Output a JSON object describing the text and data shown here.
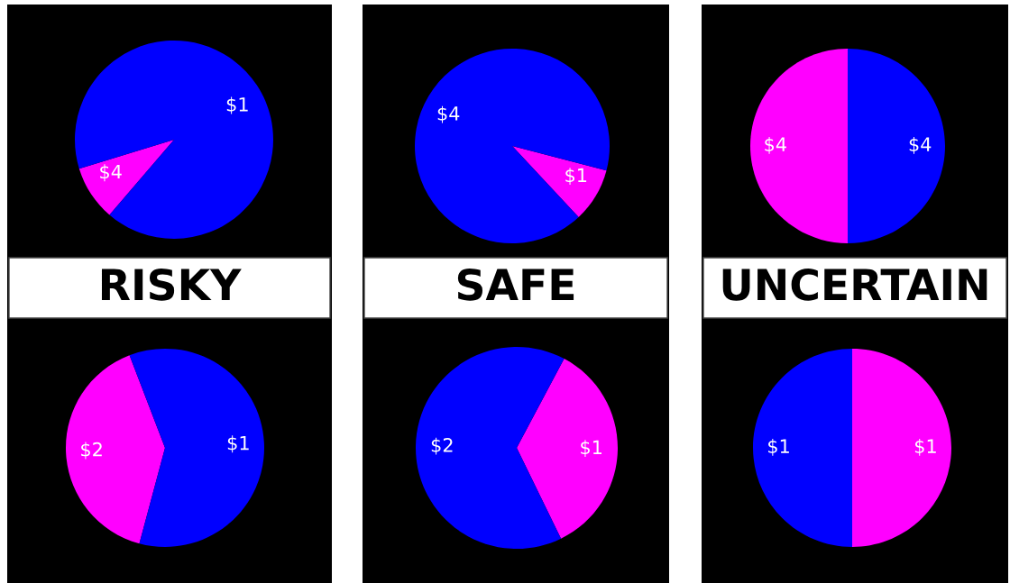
{
  "chart_data": [
    {
      "type": "pie",
      "xlabel": "RISKY",
      "categories": [
        "$4",
        "$1"
      ],
      "values": [
        9,
        91
      ],
      "colors": [
        "#ff00ff",
        "#0000ff"
      ]
    },
    {
      "type": "pie",
      "xlabel": "SAFE",
      "categories": [
        "$1",
        "$4"
      ],
      "values": [
        9,
        91
      ],
      "colors": [
        "#ff00ff",
        "#0000ff"
      ]
    },
    {
      "type": "pie",
      "xlabel": "UNCERTAIN",
      "categories": [
        "$4",
        "$4"
      ],
      "values": [
        50,
        50
      ],
      "colors": [
        "#ff00ff",
        "#0000ff"
      ]
    },
    {
      "type": "pie",
      "categories": [
        "$2",
        "$1"
      ],
      "values": [
        40,
        60
      ],
      "colors": [
        "#ff00ff",
        "#0000ff"
      ]
    },
    {
      "type": "pie",
      "categories": [
        "$1",
        "$2"
      ],
      "values": [
        35,
        65
      ],
      "colors": [
        "#ff00ff",
        "#0000ff"
      ]
    },
    {
      "type": "pie",
      "categories": [
        "$1",
        "$1"
      ],
      "values": [
        50,
        50
      ],
      "colors": [
        "#0000ff",
        "#ff00ff"
      ]
    }
  ]
}
